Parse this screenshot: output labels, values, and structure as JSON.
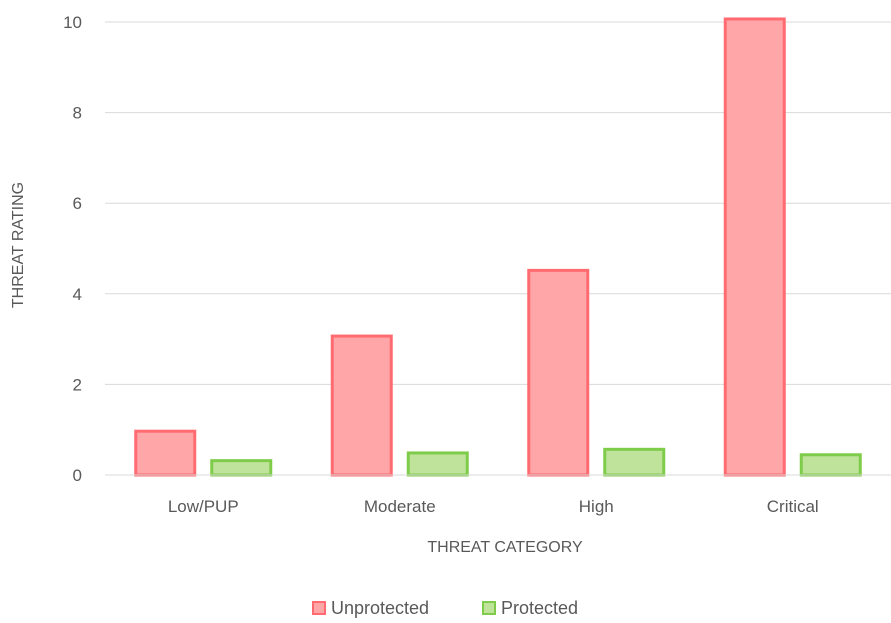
{
  "chart_data": {
    "type": "bar",
    "title": "",
    "xlabel": "THREAT CATEGORY",
    "ylabel": "THREAT RATING",
    "categories": [
      "Low/PUP",
      "Moderate",
      "High",
      "Critical"
    ],
    "series": [
      {
        "name": "Unprotected",
        "values": [
          1.0,
          3.1,
          4.55,
          10.1
        ],
        "fill": "#ffa6a8",
        "stroke": "#ff6b70"
      },
      {
        "name": "Protected",
        "values": [
          0.35,
          0.52,
          0.6,
          0.48
        ],
        "fill": "#bfe39a",
        "stroke": "#7fcc4a"
      }
    ],
    "ylim": [
      0,
      10
    ],
    "yticks": [
      "0",
      "2",
      "4",
      "6",
      "8",
      "10"
    ],
    "grid": true,
    "legend_position": "bottom"
  }
}
